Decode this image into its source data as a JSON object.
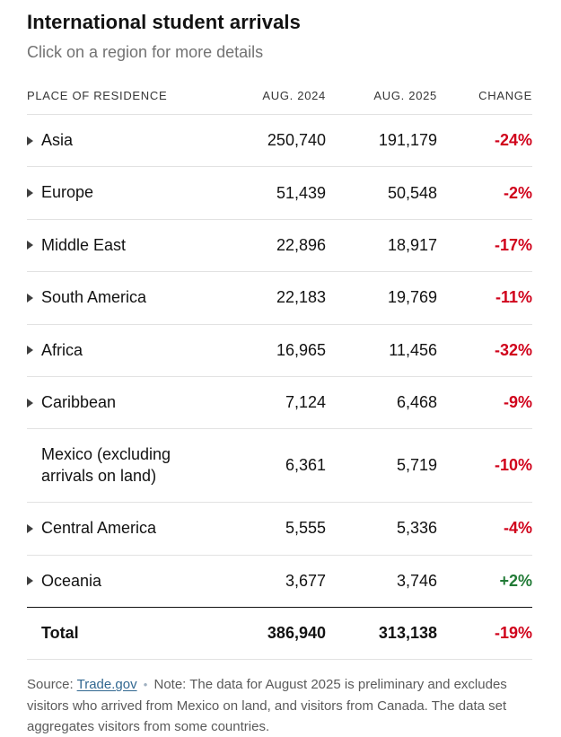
{
  "title": "International student arrivals",
  "subtitle": "Click on a region for more details",
  "columns": {
    "place": "Place of residence",
    "aug2024": "Aug. 2024",
    "aug2025": "Aug. 2025",
    "change": "Change"
  },
  "table": {
    "rows": [
      {
        "region": "Asia",
        "aug2024": "250,740",
        "aug2025": "191,179",
        "change": "-24%",
        "expandable": true
      },
      {
        "region": "Europe",
        "aug2024": "51,439",
        "aug2025": "50,548",
        "change": "-2%",
        "expandable": true
      },
      {
        "region": "Middle East",
        "aug2024": "22,896",
        "aug2025": "18,917",
        "change": "-17%",
        "expandable": true
      },
      {
        "region": "South America",
        "aug2024": "22,183",
        "aug2025": "19,769",
        "change": "-11%",
        "expandable": true
      },
      {
        "region": "Africa",
        "aug2024": "16,965",
        "aug2025": "11,456",
        "change": "-32%",
        "expandable": true
      },
      {
        "region": "Caribbean",
        "aug2024": "7,124",
        "aug2025": "6,468",
        "change": "-9%",
        "expandable": true
      },
      {
        "region": "Mexico (excluding arrivals on land)",
        "aug2024": "6,361",
        "aug2025": "5,719",
        "change": "-10%",
        "expandable": false
      },
      {
        "region": "Central America",
        "aug2024": "5,555",
        "aug2025": "5,336",
        "change": "-4%",
        "expandable": true
      },
      {
        "region": "Oceania",
        "aug2024": "3,677",
        "aug2025": "3,746",
        "change": "+2%",
        "expandable": true
      }
    ],
    "total": {
      "label": "Total",
      "aug2024": "386,940",
      "aug2025": "313,138",
      "change": "-19%"
    }
  },
  "footer": {
    "source_label": "Source:",
    "source_link": "Trade.gov",
    "separator": "•",
    "note": "Note: The data for August 2025 is preliminary and excludes visitors who arrived from Mexico on land, and visitors from Canada. The data set aggregates visitors from some countries."
  },
  "colors": {
    "negative": "#d0021b",
    "positive": "#217a36",
    "link": "#326891"
  },
  "chart_data": {
    "type": "table",
    "title": "International student arrivals",
    "columns": [
      "Place of residence",
      "Aug. 2024",
      "Aug. 2025",
      "Change (%)"
    ],
    "rows": [
      [
        "Asia",
        250740,
        191179,
        -24
      ],
      [
        "Europe",
        51439,
        50548,
        -2
      ],
      [
        "Middle East",
        22896,
        18917,
        -17
      ],
      [
        "South America",
        22183,
        19769,
        -11
      ],
      [
        "Africa",
        16965,
        11456,
        -32
      ],
      [
        "Caribbean",
        7124,
        6468,
        -9
      ],
      [
        "Mexico (excluding arrivals on land)",
        6361,
        5719,
        -10
      ],
      [
        "Central America",
        5555,
        5336,
        -4
      ],
      [
        "Oceania",
        3677,
        3746,
        2
      ]
    ],
    "total": [
      "Total",
      386940,
      313138,
      -19
    ]
  }
}
